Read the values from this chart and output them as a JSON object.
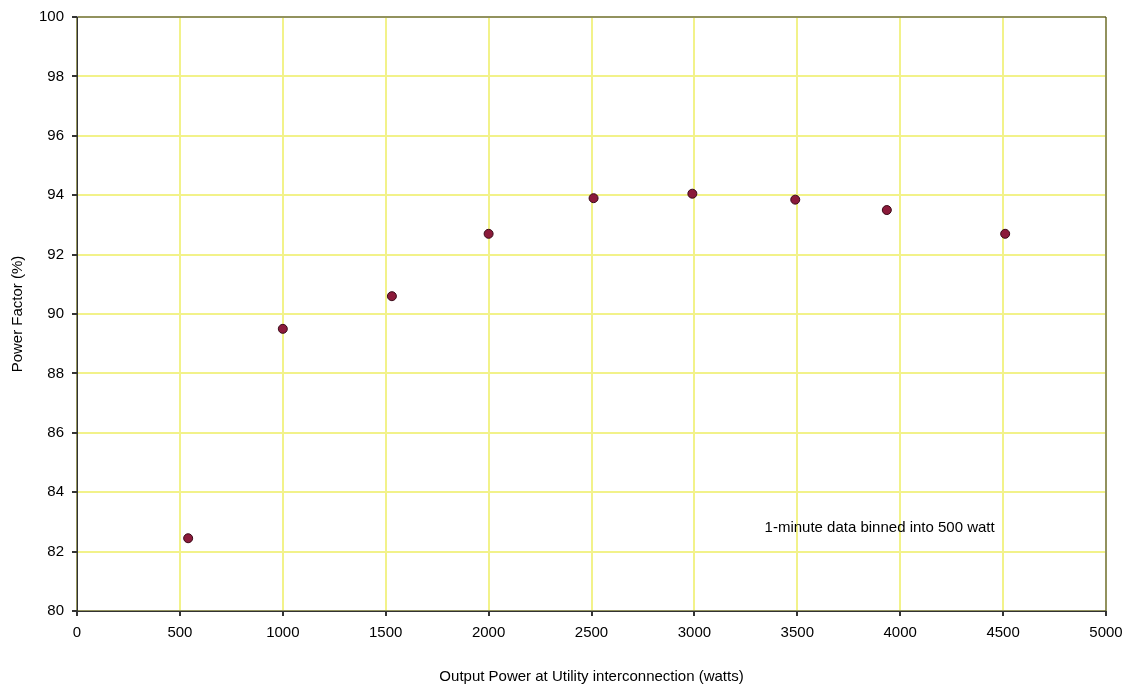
{
  "chart_data": {
    "type": "scatter",
    "xlabel": "Output Power at Utility interconnection (watts)",
    "ylabel": "Power Factor (%)",
    "x": [
      540,
      1000,
      1530,
      2000,
      2510,
      2990,
      3490,
      3935,
      4510
    ],
    "values": [
      82.45,
      89.5,
      90.6,
      92.7,
      93.9,
      94.05,
      93.85,
      93.5,
      92.7
    ],
    "color": "#8b1a3a",
    "marker": "circle",
    "xlim": [
      0,
      5000
    ],
    "xticks": [
      0,
      500,
      1000,
      1500,
      2000,
      2500,
      3000,
      3500,
      4000,
      4500,
      5000
    ],
    "ylim": [
      80,
      100
    ],
    "yticks": [
      80,
      82,
      84,
      86,
      88,
      90,
      92,
      94,
      96,
      98,
      100
    ],
    "grid": true,
    "legend": false,
    "annotations": [
      "1-minute data binned into 500 watt"
    ]
  }
}
